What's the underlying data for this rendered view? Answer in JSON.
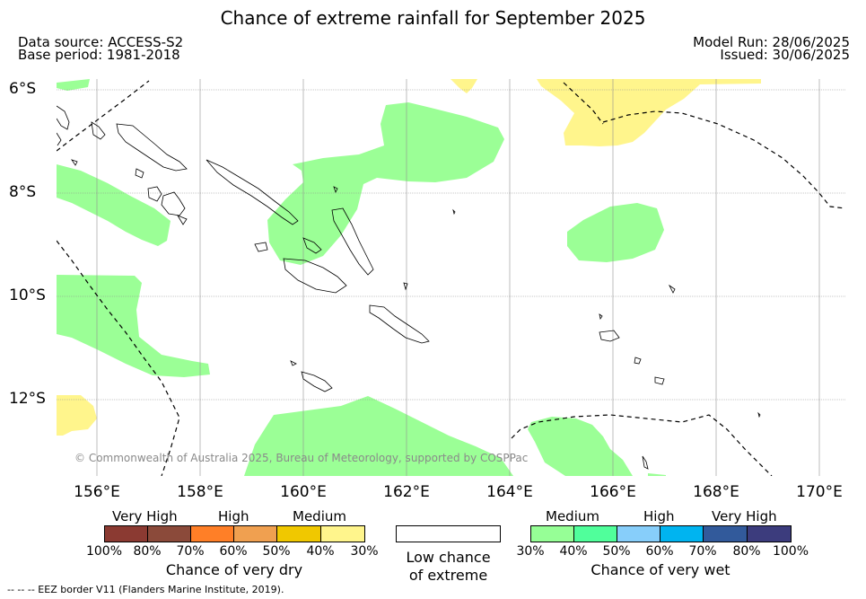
{
  "title": "Chance of extreme rainfall for September 2025",
  "data_source": "Data source: ACCESS-S2",
  "base_period": "Base period: 1981-2018",
  "model_run": "Model Run: 28/06/2025",
  "issued": "Issued: 30/06/2025",
  "lat_labels": [
    "6°S",
    "8°S",
    "10°S",
    "12°S"
  ],
  "lon_labels": [
    "156°E",
    "158°E",
    "160°E",
    "162°E",
    "164°E",
    "166°E",
    "168°E",
    "170°E"
  ],
  "copyright": "© Commonwealth of Australia 2025, Bureau of Meteorology, supported by COSPPac",
  "eez_note": "--  --  -- EEZ border V11 (Flanders Marine Institute, 2019).",
  "legend": {
    "dry": {
      "title": "Chance of very dry",
      "categories": [
        "Very High",
        "High",
        "Medium"
      ],
      "ticks": [
        "100%",
        "80%",
        "70%",
        "60%",
        "50%",
        "40%",
        "30%"
      ],
      "colors": [
        "#8b3a32",
        "#8b4a3a",
        "#ff7f27",
        "#f0a050",
        "#f0c800",
        "#fff58c"
      ]
    },
    "neutral": {
      "line1": "Low chance",
      "line2": "of extreme"
    },
    "wet": {
      "title": "Chance of very wet",
      "categories": [
        "Medium",
        "High",
        "Very High"
      ],
      "ticks": [
        "30%",
        "40%",
        "50%",
        "60%",
        "70%",
        "80%",
        "100%"
      ],
      "colors": [
        "#96ff96",
        "#50ff9b",
        "#87cefa",
        "#00b4f0",
        "#325a9b",
        "#3c3c7d"
      ]
    }
  },
  "map_colors": {
    "wet_medium": "#9bff96",
    "dry_medium": "#fff58c"
  }
}
